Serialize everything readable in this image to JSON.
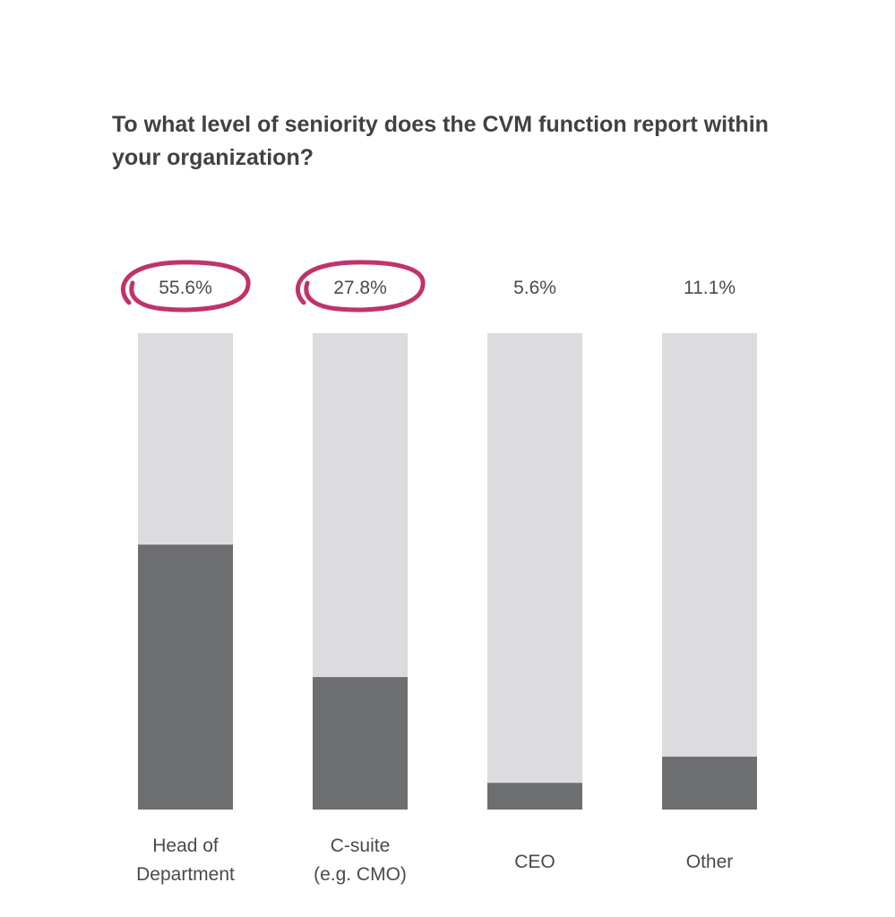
{
  "chart_data": {
    "type": "bar",
    "title": "To what level of seniority does the CVM function report within your organization?",
    "categories": [
      [
        "Head of",
        "Department"
      ],
      [
        "C-suite",
        "(e.g. CMO)"
      ],
      [
        "CEO"
      ],
      [
        "Other"
      ]
    ],
    "values": [
      55.6,
      27.8,
      5.6,
      11.1
    ],
    "value_labels": [
      "55.6%",
      "27.8%",
      "5.6%",
      "11.1%"
    ],
    "highlighted": [
      true,
      true,
      false,
      false
    ],
    "ylim": [
      0,
      100
    ],
    "stacked_remainder": true,
    "grid": false,
    "legend": "none",
    "colors": {
      "value_fill": "#6d6e70",
      "remainder_fill": "#dcdcde",
      "highlight_circle": "#c0336a",
      "text": "#4a4a4c",
      "title": "#414042"
    }
  }
}
